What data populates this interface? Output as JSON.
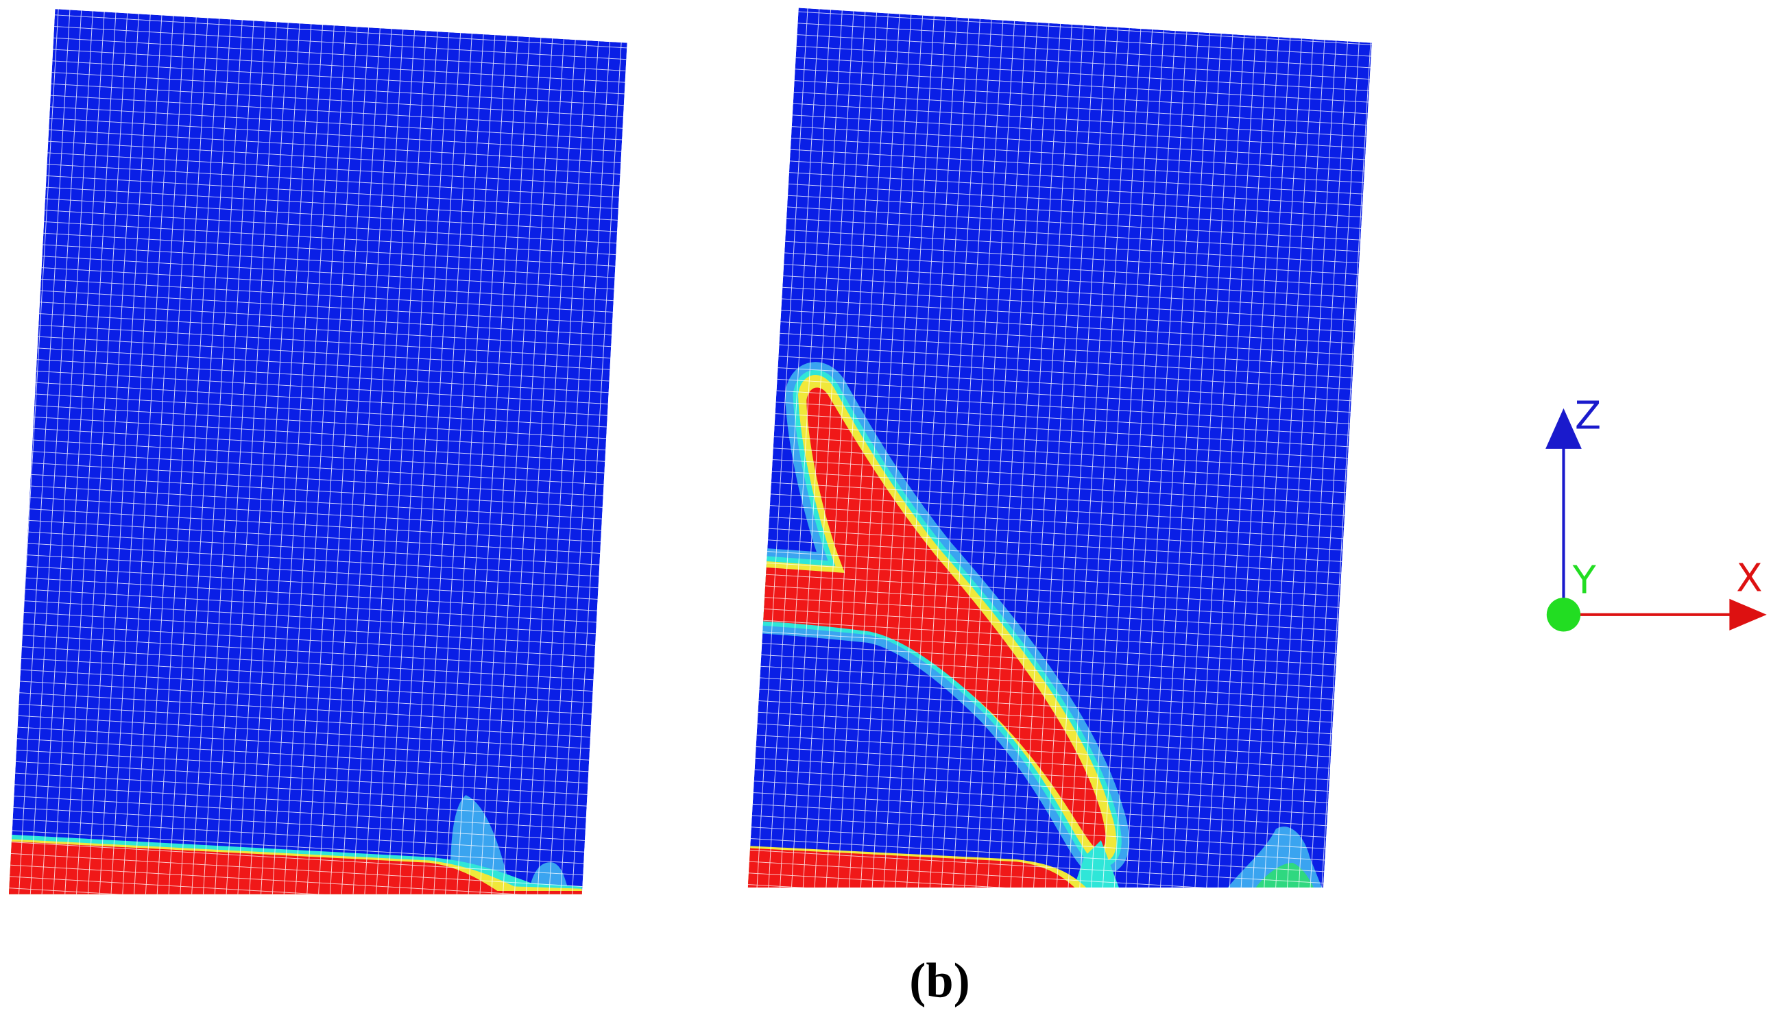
{
  "axes": {
    "z": "Z",
    "y": "Y",
    "x": "X"
  },
  "caption": "(b)"
}
